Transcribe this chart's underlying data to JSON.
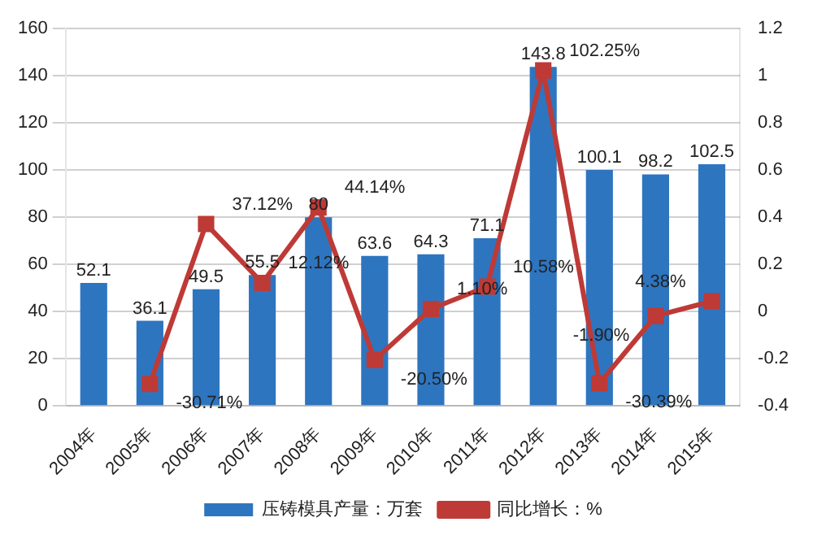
{
  "chart_data": {
    "type": "bar",
    "categories": [
      "2004年",
      "2005年",
      "2006年",
      "2007年",
      "2008年",
      "2009年",
      "2010年",
      "2011年",
      "2012年",
      "2013年",
      "2014年",
      "2015年"
    ],
    "series": [
      {
        "name": "压铸模具产量：万套",
        "color": "#2e75c0",
        "values": [
          52.1,
          36.1,
          49.5,
          55.5,
          80,
          63.6,
          64.3,
          71.1,
          143.8,
          100.1,
          98.2,
          102.5
        ]
      },
      {
        "name": "同比增长：%",
        "type": "line",
        "axis": "y2",
        "color": "#be3a36",
        "marker": "square",
        "values": [
          null,
          -0.3071,
          0.3712,
          0.1212,
          0.4414,
          -0.205,
          0.011,
          0.1058,
          1.0225,
          -0.3039,
          -0.019,
          0.0438
        ],
        "value_labels": [
          null,
          "-30.71%",
          "37.12%",
          "12.12%",
          "44.14%",
          "-20.50%",
          "1.10%",
          "10.58%",
          "102.25%",
          "-30.39%",
          "-1.90%",
          "4.38%"
        ]
      }
    ],
    "ylim": [
      0,
      160
    ],
    "yticks": [
      0,
      20,
      40,
      60,
      80,
      100,
      120,
      140,
      160
    ],
    "y2lim": [
      -0.4,
      1.2
    ],
    "y2ticks": [
      -0.4,
      -0.2,
      0,
      0.2,
      0.4,
      0.6,
      0.8,
      1,
      1.2
    ],
    "grid": "y",
    "legend": "bottom",
    "data_labels": true
  }
}
